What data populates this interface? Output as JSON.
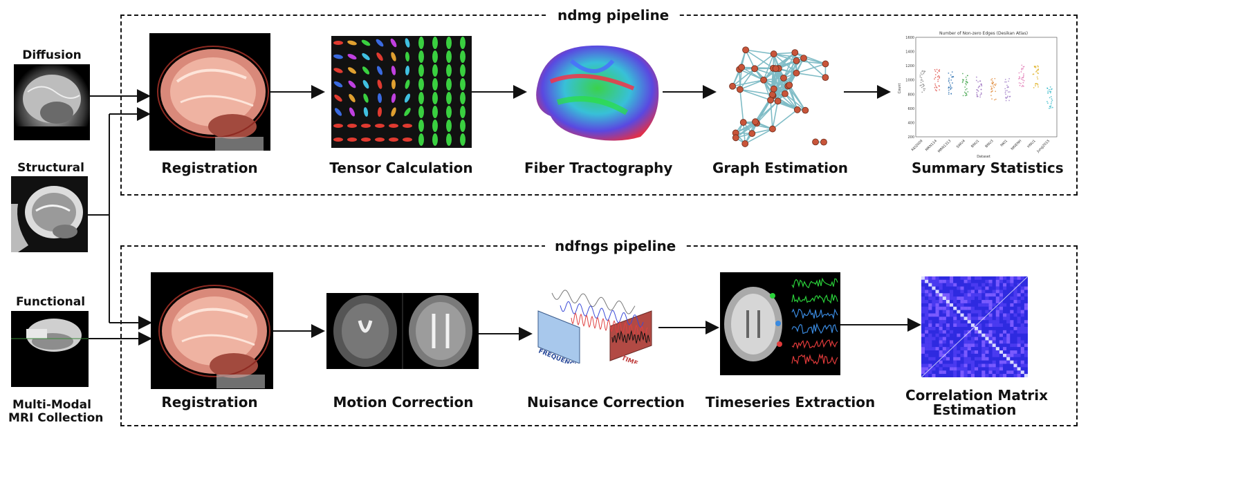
{
  "inputs": {
    "diffusion": "Diffusion",
    "structural": "Structural",
    "functional": "Functional",
    "collection": [
      "Multi-Modal",
      "MRI Collection"
    ]
  },
  "ndmg": {
    "title": "ndmg pipeline",
    "steps": [
      "Registration",
      "Tensor Calculation",
      "Fiber Tractography",
      "Graph Estimation",
      "Summary Statistics"
    ]
  },
  "ndfngs": {
    "title": "ndfngs pipeline",
    "steps": [
      "Registration",
      "Motion Correction",
      "Nuisance Correction",
      "Timeseries Extraction",
      "Correlation Matrix",
      "Estimation"
    ]
  },
  "nuisance_labels": {
    "frequency": "FREQUENCY",
    "time": "TIME"
  },
  "summary_plot": {
    "title": "Number of Non-zero Edges (Desikan Atlas)",
    "ylabel": "Count",
    "xlabel": "Dataset",
    "yticks": [
      "200",
      "400",
      "600",
      "800",
      "1000",
      "1200",
      "1400",
      "1600"
    ],
    "categories": [
      "KKI2009",
      "MRN114",
      "MRN1313",
      "SWU4",
      "BNU1",
      "BNU3",
      "NKI1",
      "NKIENH",
      "HNU1",
      "Jung2015"
    ]
  },
  "chart_data": {
    "type": "scatter",
    "title": "Number of Non-zero Edges (Desikan Atlas)",
    "xlabel": "Dataset",
    "ylabel": "Count",
    "ylim": [
      200,
      1600
    ],
    "categories": [
      "KKI2009",
      "MRN114",
      "MRN1313",
      "SWU4",
      "BNU1",
      "BNU3",
      "NKI1",
      "NKIENH",
      "HNU1",
      "Jung2015"
    ],
    "series": [
      {
        "values": [
          980,
          1000,
          960,
          930,
          910,
          870,
          860,
          1060,
          1050,
          760
        ],
        "colors": [
          "#888888",
          "#e0504a",
          "#2a6fb0",
          "#3aa043",
          "#9b6fbf",
          "#e08a3a",
          "#a07ec8",
          "#e070b0",
          "#e0b020",
          "#30b8c8"
        ]
      }
    ]
  }
}
